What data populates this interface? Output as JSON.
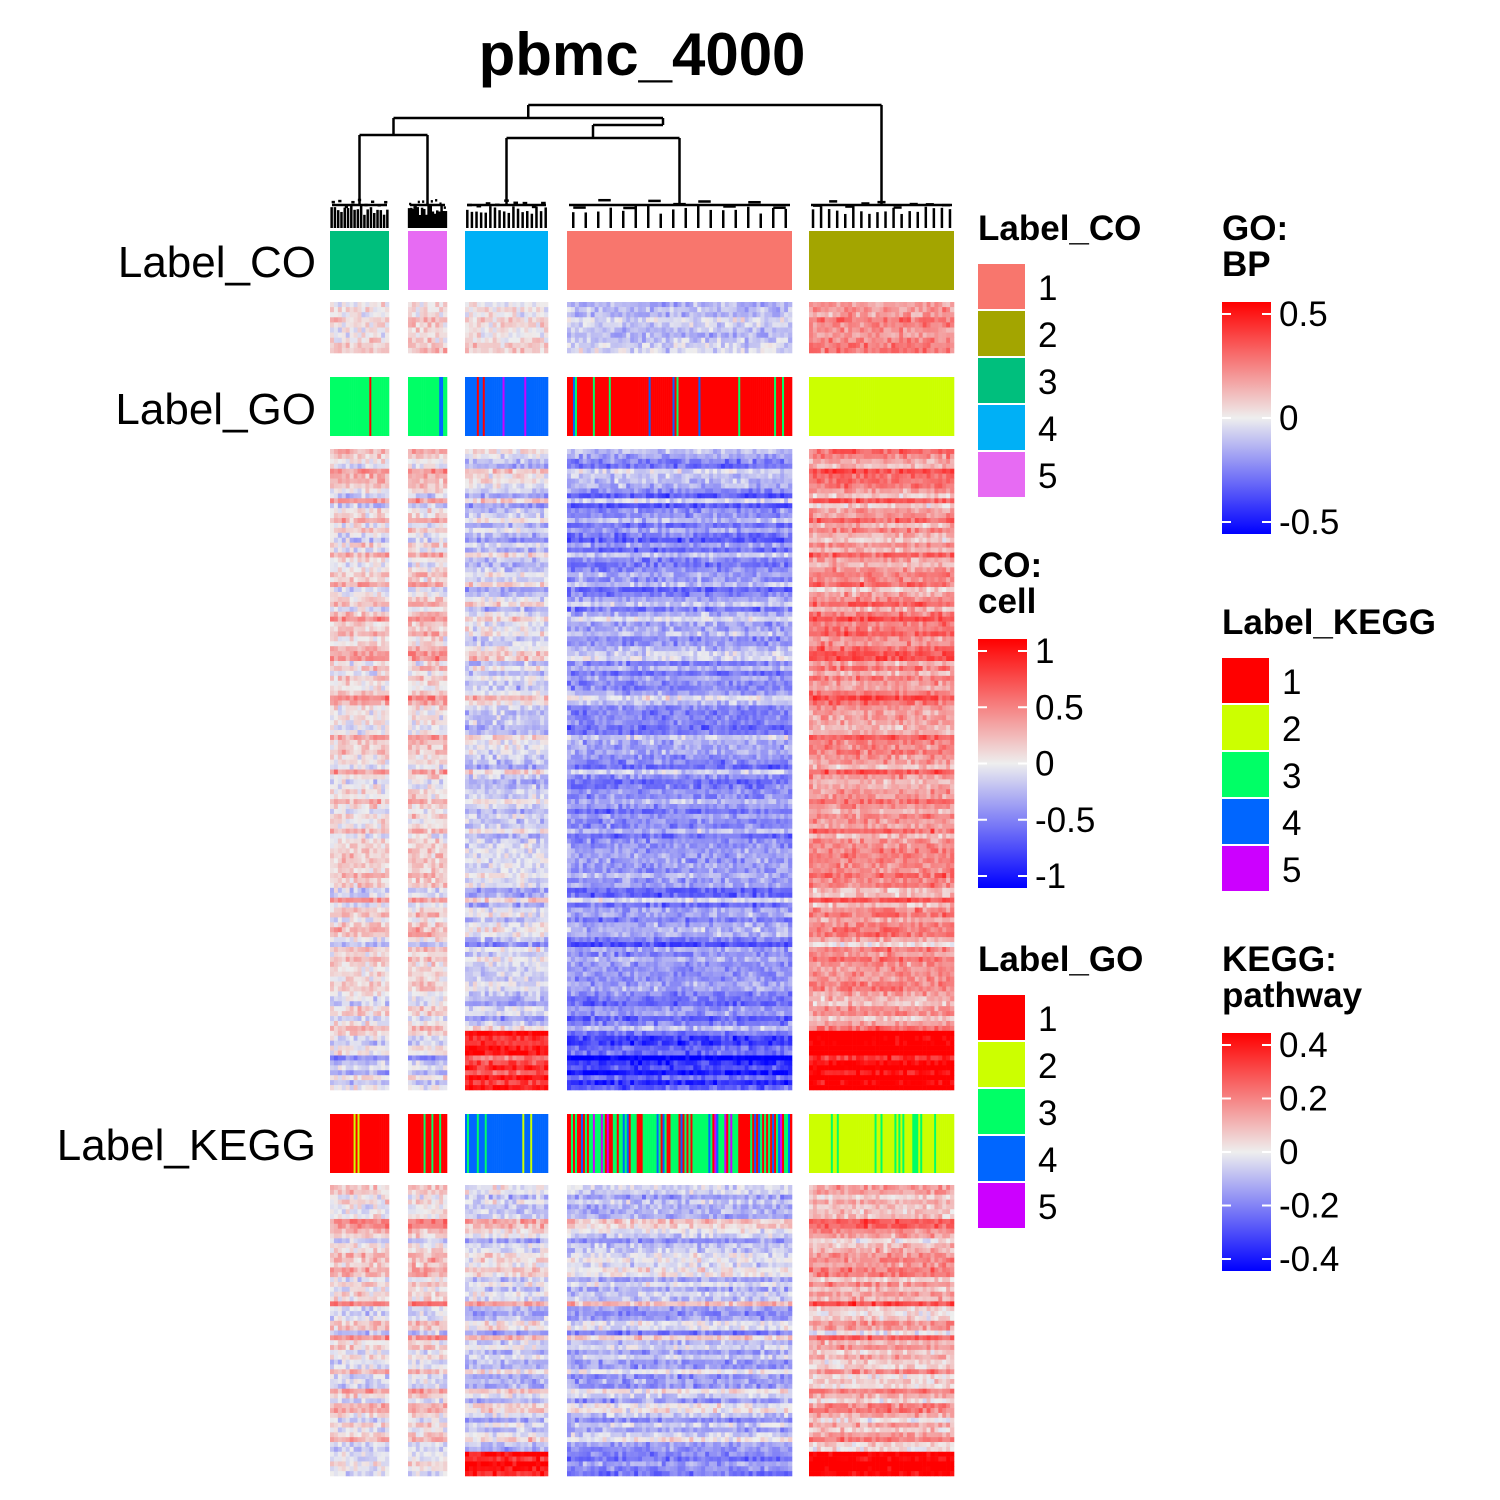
{
  "chart_data": {
    "type": "heatmap",
    "title": "pbmc_4000",
    "column_clusters": [
      {
        "cluster": "3",
        "n_cells": 30
      },
      {
        "cluster": "5",
        "n_cells": 20
      },
      {
        "cluster": "4",
        "n_cells": 42
      },
      {
        "cluster": "1",
        "n_cells": 113
      },
      {
        "cluster": "2",
        "n_cells": 73
      }
    ],
    "annotation_rows": [
      {
        "name": "Label_CO",
        "segments": [
          {
            "cluster": "3",
            "label": "3"
          },
          {
            "cluster": "5",
            "label": "5"
          },
          {
            "cluster": "4",
            "label": "4"
          },
          {
            "cluster": "1",
            "label": "1"
          },
          {
            "cluster": "2",
            "label": "2"
          }
        ]
      },
      {
        "name": "Label_GO",
        "segments": [
          {
            "cluster": "3",
            "dominant_label": "3",
            "minor_labels": [
              "1",
              "4"
            ]
          },
          {
            "cluster": "5",
            "dominant_label": "3",
            "minor_labels": [
              "1",
              "4"
            ]
          },
          {
            "cluster": "4",
            "dominant_label": "4",
            "minor_labels": [
              "1",
              "5"
            ]
          },
          {
            "cluster": "1",
            "dominant_label": "1",
            "minor_labels": [
              "3",
              "4"
            ]
          },
          {
            "cluster": "2",
            "dominant_label": "2",
            "minor_labels": []
          }
        ]
      },
      {
        "name": "Label_KEGG",
        "segments": [
          {
            "cluster": "3",
            "dominant_label": "1",
            "minor_labels": [
              "2"
            ]
          },
          {
            "cluster": "5",
            "dominant_label": "1",
            "minor_labels": [
              "3"
            ]
          },
          {
            "cluster": "4",
            "dominant_label": "4",
            "minor_labels": [
              "2",
              "3"
            ]
          },
          {
            "cluster": "1",
            "dominant_label": "mixed",
            "minor_labels": [
              "1",
              "3",
              "4",
              "5"
            ]
          },
          {
            "cluster": "2",
            "dominant_label": "2",
            "minor_labels": [
              "3"
            ]
          }
        ]
      }
    ],
    "heatmap_blocks": [
      {
        "name": "CO: cell",
        "rows": 10,
        "range": [
          -1,
          1
        ],
        "cluster_means": {
          "3": 0.05,
          "5": 0.12,
          "4": 0.05,
          "1": -0.2,
          "2": 0.4
        }
      },
      {
        "name": "GO: BP",
        "rows": 130,
        "range": [
          -0.5,
          0.5
        ],
        "cluster_means": {
          "3": 0.05,
          "5": 0.06,
          "4": -0.05,
          "1": -0.18,
          "2": 0.2
        }
      },
      {
        "name": "KEGG: pathway",
        "rows": 60,
        "range": [
          -0.4,
          0.4
        ],
        "cluster_means": {
          "3": 0.02,
          "5": 0.03,
          "4": -0.04,
          "1": -0.08,
          "2": 0.1
        }
      }
    ],
    "legends": [
      {
        "title": "Label_CO",
        "type": "discrete",
        "items": [
          {
            "label": "1",
            "color": "#F8766D"
          },
          {
            "label": "2",
            "color": "#A3A500"
          },
          {
            "label": "3",
            "color": "#00BF7D"
          },
          {
            "label": "4",
            "color": "#00B0F6"
          },
          {
            "label": "5",
            "color": "#E76BF3"
          }
        ]
      },
      {
        "title": "CO: cell",
        "type": "continuous",
        "ticks": [
          "1",
          "0.5",
          "0",
          "-0.5",
          "-1"
        ],
        "colors": {
          "low": "#0000FF",
          "mid": "#EEEEEE",
          "high": "#FF0000"
        }
      },
      {
        "title": "Label_GO",
        "type": "discrete",
        "items": [
          {
            "label": "1",
            "color": "#FF0000"
          },
          {
            "label": "2",
            "color": "#CCFF00"
          },
          {
            "label": "3",
            "color": "#00FF66"
          },
          {
            "label": "4",
            "color": "#0066FF"
          },
          {
            "label": "5",
            "color": "#CC00FF"
          }
        ]
      },
      {
        "title": "GO: BP",
        "type": "continuous",
        "ticks": [
          "0.5",
          "0",
          "-0.5"
        ],
        "colors": {
          "low": "#0000FF",
          "mid": "#EEEEEE",
          "high": "#FF0000"
        }
      },
      {
        "title": "Label_KEGG",
        "type": "discrete",
        "items": [
          {
            "label": "1",
            "color": "#FF0000"
          },
          {
            "label": "2",
            "color": "#CCFF00"
          },
          {
            "label": "3",
            "color": "#00FF66"
          },
          {
            "label": "4",
            "color": "#0066FF"
          },
          {
            "label": "5",
            "color": "#CC00FF"
          }
        ]
      },
      {
        "title": "KEGG: pathway",
        "type": "continuous",
        "ticks": [
          "0.4",
          "0.2",
          "0",
          "-0.2",
          "-0.4"
        ],
        "colors": {
          "low": "#0000FF",
          "mid": "#EEEEEE",
          "high": "#FF0000"
        }
      }
    ]
  }
}
